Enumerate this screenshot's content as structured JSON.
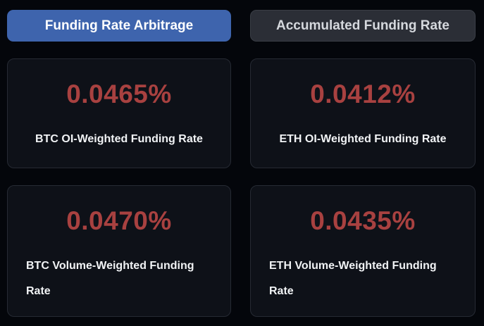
{
  "tabs": [
    {
      "label": "Funding Rate Arbitrage",
      "active": true
    },
    {
      "label": "Accumulated Funding Rate",
      "active": false
    }
  ],
  "cards": [
    {
      "value": "0.0465%",
      "label": "BTC OI-Weighted Funding Rate"
    },
    {
      "value": "0.0412%",
      "label": "ETH OI-Weighted Funding Rate"
    },
    {
      "value": "0.0470%",
      "label": "BTC Volume-Weighted Funding Rate"
    },
    {
      "value": "0.0435%",
      "label": "ETH Volume-Weighted Funding Rate"
    }
  ],
  "colors": {
    "page_background": "#04060b",
    "card_background": "#0e1118",
    "card_border": "#262a33",
    "value_red": "#a84140",
    "active_tab_blue": "#3e64ad",
    "inactive_tab_gray": "#2b2e36",
    "label_text": "#f1f3f5",
    "inactive_tab_text": "#d5d8dd"
  }
}
